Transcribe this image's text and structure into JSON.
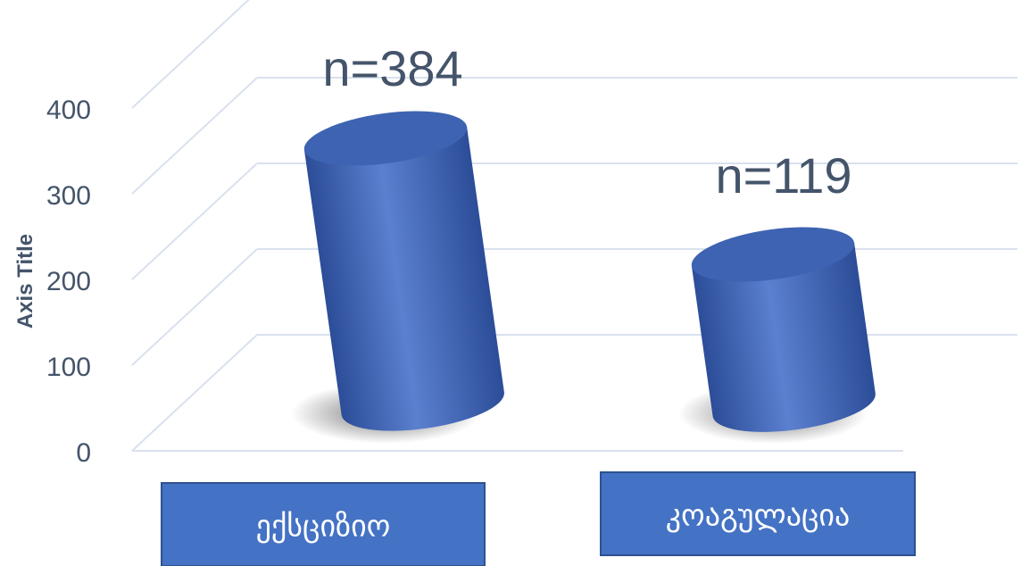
{
  "chart_data": {
    "type": "bar",
    "style": "3d-cylinder",
    "ylabel": "Axis Title",
    "ylim": [
      0,
      400
    ],
    "yticks": [
      0,
      100,
      200,
      300,
      400
    ],
    "grid": true,
    "categories": [
      "ექსციზიო",
      "კოაგულაცია"
    ],
    "values": [
      384,
      119
    ],
    "data_labels": [
      "n=384",
      "n=119"
    ],
    "colors": {
      "bar_base": "#3F64B5",
      "bar_light": "#5B80CF",
      "bar_dark": "#2C4D98",
      "bar_top": "#3E63B2",
      "category_box": "#4472C4",
      "category_box_border": "#2F528F",
      "category_text": "#FFFFFF",
      "axis_text": "#44546A",
      "grid": "#D9E1EE"
    }
  }
}
